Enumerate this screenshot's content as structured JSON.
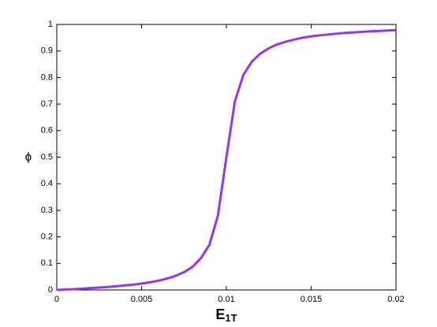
{
  "chart_data": {
    "type": "line",
    "xlabel": {
      "text": "E",
      "subscript": "1T"
    },
    "ylabel": "ϕ",
    "x": [
      0,
      0.0005,
      0.001,
      0.0015,
      0.002,
      0.0025,
      0.003,
      0.0035,
      0.004,
      0.0045,
      0.005,
      0.0055,
      0.006,
      0.0065,
      0.007,
      0.0075,
      0.008,
      0.0085,
      0.009,
      0.0095,
      0.01,
      0.0105,
      0.011,
      0.0115,
      0.012,
      0.0125,
      0.013,
      0.0135,
      0.014,
      0.0145,
      0.015,
      0.0155,
      0.016,
      0.0165,
      0.017,
      0.0175,
      0.018,
      0.0185,
      0.019,
      0.0195,
      0.02
    ],
    "values": [
      0,
      0.002,
      0.003,
      0.005,
      0.007,
      0.009,
      0.011,
      0.014,
      0.017,
      0.02,
      0.024,
      0.029,
      0.035,
      0.043,
      0.053,
      0.067,
      0.087,
      0.12,
      0.17,
      0.28,
      0.5,
      0.71,
      0.81,
      0.86,
      0.89,
      0.91,
      0.925,
      0.935,
      0.943,
      0.95,
      0.955,
      0.959,
      0.962,
      0.965,
      0.968,
      0.97,
      0.972,
      0.974,
      0.975,
      0.977,
      0.978
    ],
    "color": "#9933ee",
    "xlim": [
      0,
      0.02
    ],
    "xticks": [
      0,
      0.005,
      0.01,
      0.015,
      0.02
    ],
    "ylim": [
      0,
      1
    ],
    "yticks": [
      0,
      0.1,
      0.2,
      0.3,
      0.4,
      0.5,
      0.6,
      0.7,
      0.8,
      0.9,
      1
    ],
    "grid": false
  }
}
